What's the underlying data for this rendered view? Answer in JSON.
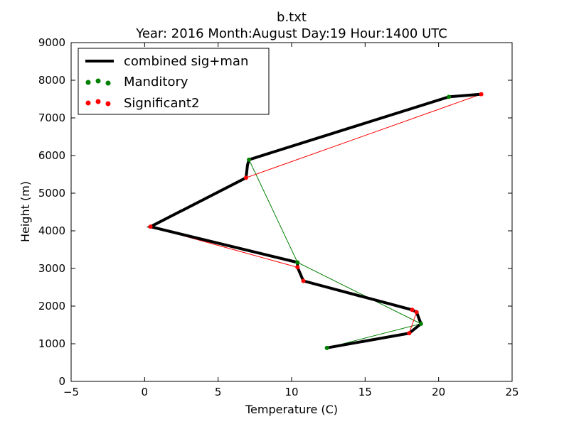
{
  "chart_data": {
    "type": "line",
    "title": "b.txt",
    "subtitle": "Year: 2016  Month:August  Day:19  Hour:1400 UTC",
    "xlabel": "Temperature (C)",
    "ylabel": "Height (m)",
    "xlim": [
      -5,
      25
    ],
    "ylim": [
      0,
      9000
    ],
    "xticks": [
      -5,
      0,
      5,
      10,
      15,
      20,
      25
    ],
    "yticks": [
      0,
      1000,
      2000,
      3000,
      4000,
      5000,
      6000,
      7000,
      8000,
      9000
    ],
    "grid": false,
    "legend_position": "top-left",
    "series": [
      {
        "name": "combined sig+man",
        "kind": "line",
        "color": "#000000",
        "points": [
          [
            12.4,
            890
          ],
          [
            18.0,
            1280
          ],
          [
            18.8,
            1530
          ],
          [
            18.5,
            1840
          ],
          [
            18.2,
            1900
          ],
          [
            10.8,
            2670
          ],
          [
            10.4,
            3030
          ],
          [
            10.4,
            3160
          ],
          [
            0.4,
            4110
          ],
          [
            6.9,
            5410
          ],
          [
            7.0,
            5750
          ],
          [
            7.1,
            5890
          ],
          [
            20.7,
            7560
          ],
          [
            22.9,
            7630
          ]
        ]
      },
      {
        "name": "Manditory",
        "kind": "scatter",
        "color": "#008000",
        "points": [
          [
            12.4,
            890
          ],
          [
            18.8,
            1530
          ],
          [
            10.4,
            3160
          ],
          [
            7.1,
            5890
          ],
          [
            20.7,
            7560
          ]
        ]
      },
      {
        "name": "Significant2",
        "kind": "scatter",
        "color": "#ff0000",
        "points": [
          [
            18.0,
            1280
          ],
          [
            18.5,
            1840
          ],
          [
            18.2,
            1900
          ],
          [
            10.8,
            2670
          ],
          [
            10.4,
            3030
          ],
          [
            0.4,
            4110
          ],
          [
            6.9,
            5410
          ],
          [
            22.9,
            7630
          ]
        ]
      }
    ]
  }
}
